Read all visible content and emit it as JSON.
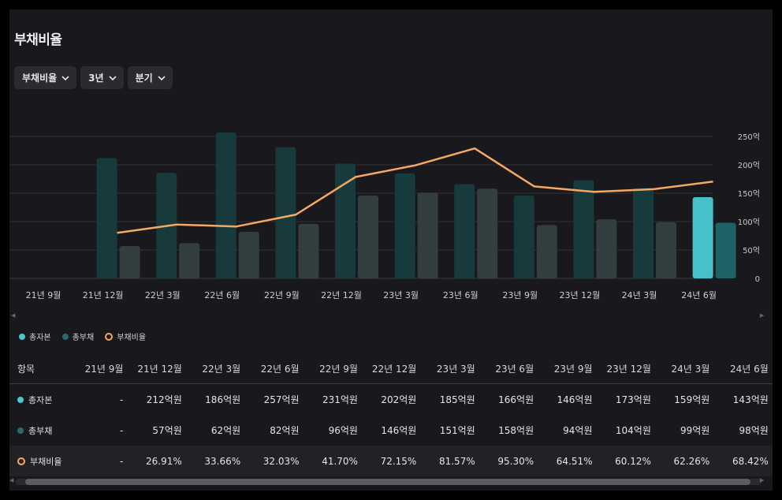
{
  "title": "부채비율",
  "filters": [
    {
      "label": "부채비율"
    },
    {
      "label": "3년"
    },
    {
      "label": "분기"
    }
  ],
  "colors": {
    "capital": "#173a3c",
    "capital_highlight": "#47c0c9",
    "debt": "#333e40",
    "debt_highlight": "#1f6266",
    "ratio_line": "#f5a862",
    "legend_capital": "#4fc6cf",
    "legend_debt": "#2a6a6d"
  },
  "chart_data": {
    "type": "bar",
    "categories": [
      "21년 9월",
      "21년 12월",
      "22년 3월",
      "22년 6월",
      "22년 9월",
      "22년 12월",
      "23년 3월",
      "23년 6월",
      "23년 9월",
      "23년 12월",
      "24년 3월",
      "24년 6월"
    ],
    "series": [
      {
        "name": "총자본",
        "values": [
          null,
          212,
          186,
          257,
          231,
          202,
          185,
          166,
          146,
          173,
          159,
          143
        ]
      },
      {
        "name": "총부채",
        "values": [
          null,
          57,
          62,
          82,
          96,
          146,
          151,
          158,
          94,
          104,
          99,
          98
        ]
      },
      {
        "name": "부채비율",
        "type": "line",
        "values": [
          null,
          26.91,
          33.66,
          32.03,
          41.7,
          72.15,
          81.57,
          95.3,
          64.51,
          60.12,
          62.26,
          68.42
        ]
      }
    ],
    "y_axis": {
      "ticks": [
        "0",
        "50억",
        "100억",
        "150억",
        "200억",
        "250억"
      ],
      "tick_values": [
        0,
        50,
        100,
        150,
        200,
        250
      ],
      "range": [
        0,
        250
      ]
    },
    "ratio_axis_range": [
      -10,
      105
    ],
    "highlight_index": 11
  },
  "legend": [
    {
      "label": "총자본"
    },
    {
      "label": "총부채"
    },
    {
      "label": "부채비율"
    }
  ],
  "table": {
    "header_label": "항목",
    "columns": [
      "21년 9월",
      "21년 12월",
      "22년 3월",
      "22년 6월",
      "22년 9월",
      "22년 12월",
      "23년 3월",
      "23년 6월",
      "23년 9월",
      "23년 12월",
      "24년 3월",
      "24년 6월"
    ],
    "rows": [
      {
        "label": "총자본",
        "values": [
          "-",
          "212억원",
          "186억원",
          "257억원",
          "231억원",
          "202억원",
          "185억원",
          "166억원",
          "146억원",
          "173억원",
          "159억원",
          "143억원"
        ]
      },
      {
        "label": "총부채",
        "values": [
          "-",
          "57억원",
          "62억원",
          "82억원",
          "96억원",
          "146억원",
          "151억원",
          "158억원",
          "94억원",
          "104억원",
          "99억원",
          "98억원"
        ]
      },
      {
        "label": "부채비율",
        "values": [
          "-",
          "26.91%",
          "33.66%",
          "32.03%",
          "41.70%",
          "72.15%",
          "81.57%",
          "95.30%",
          "64.51%",
          "60.12%",
          "62.26%",
          "68.42%"
        ]
      }
    ]
  }
}
